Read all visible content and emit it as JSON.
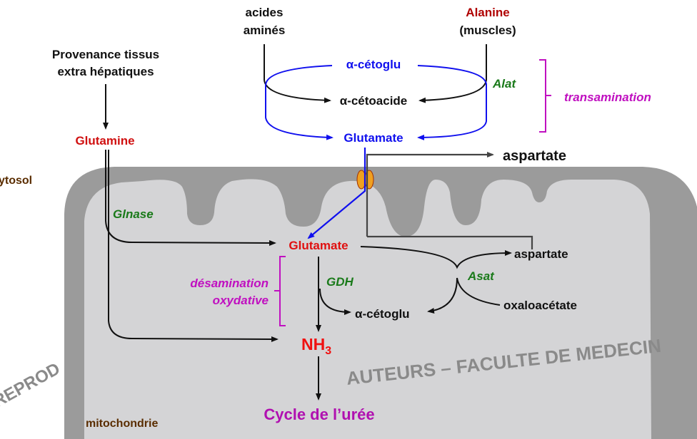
{
  "colors": {
    "red": "#e01010",
    "dark_red": "#b00000",
    "blue": "#1010ee",
    "green": "#1a7a1a",
    "magenta": "#c010c0",
    "brown": "#5a2d00",
    "membrane_outer": "#9b9b9b",
    "matrix": "#d4d4d6",
    "channel": "#f0a020"
  },
  "top": {
    "acides_line1": "acides",
    "acides_line2": "aminés",
    "alanine": "Alanine",
    "muscles": "(muscles)",
    "provenance_line1": "Provenance tissus",
    "provenance_line2": "extra hépatiques",
    "glutamine": "Glutamine",
    "cytosol": "ytosol",
    "a_cetoglu": "α-cétoglu",
    "a_cetoacide": "α-cétoacide",
    "glutamate_blue": "Glutamate",
    "alat": "Alat",
    "transamination": "transamination",
    "aspartate_out": "aspartate"
  },
  "mito": {
    "glnase": "Glnase",
    "glutamate": "Glutamate",
    "aspartate": "aspartate",
    "asat": "Asat",
    "oxaloacetate": "oxaloacétate",
    "desamination_line1": "désamination",
    "desamination_line2": "oxydative",
    "gdh": "GDH",
    "a_cetoglu": "α-cétoglu",
    "nh3": "NH",
    "nh3_sub": "3",
    "cycle": "Cycle de l’urée",
    "label": "mitochondrie"
  },
  "watermarks": {
    "main": "AUTEURS – FACULTE DE MEDECIN",
    "left": "REPROD"
  }
}
